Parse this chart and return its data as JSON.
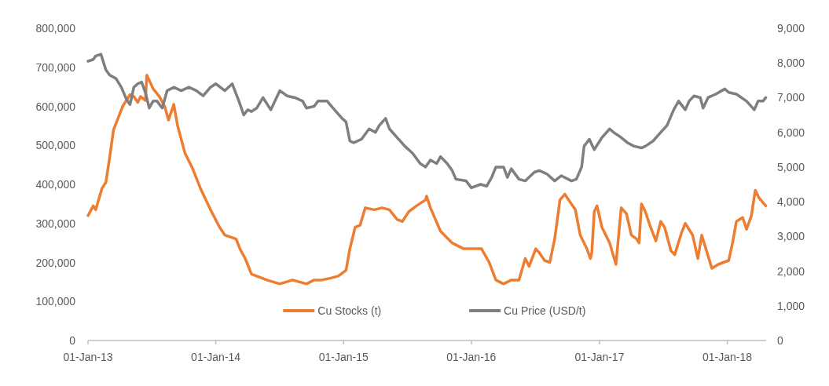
{
  "chart_data": {
    "type": "line",
    "xlim": [
      "2013-01-01",
      "2018-04-22"
    ],
    "xticks": [
      {
        "value": "2013-01-01",
        "label": "01-Jan-13"
      },
      {
        "value": "2014-01-01",
        "label": "01-Jan-14"
      },
      {
        "value": "2015-01-01",
        "label": "01-Jan-15"
      },
      {
        "value": "2016-01-01",
        "label": "01-Jan-16"
      },
      {
        "value": "2017-01-01",
        "label": "01-Jan-17"
      },
      {
        "value": "2018-01-01",
        "label": "01-Jan-18"
      }
    ],
    "ylim": [
      0,
      800000
    ],
    "yticks": [
      {
        "value": 0,
        "label": "0"
      },
      {
        "value": 100000,
        "label": "100,000"
      },
      {
        "value": 200000,
        "label": "200,000"
      },
      {
        "value": 300000,
        "label": "300,000"
      },
      {
        "value": 400000,
        "label": "400,000"
      },
      {
        "value": 500000,
        "label": "500,000"
      },
      {
        "value": 600000,
        "label": "600,000"
      },
      {
        "value": 700000,
        "label": "700,000"
      },
      {
        "value": 800000,
        "label": "800,000"
      }
    ],
    "y2lim": [
      0,
      9000
    ],
    "y2ticks": [
      {
        "value": 0,
        "label": "0"
      },
      {
        "value": 1000,
        "label": "1,000"
      },
      {
        "value": 2000,
        "label": "2,000"
      },
      {
        "value": 3000,
        "label": "3,000"
      },
      {
        "value": 4000,
        "label": "4,000"
      },
      {
        "value": 5000,
        "label": "5,000"
      },
      {
        "value": 6000,
        "label": "6,000"
      },
      {
        "value": 7000,
        "label": "7,000"
      },
      {
        "value": 8000,
        "label": "8,000"
      },
      {
        "value": 9000,
        "label": "9,000"
      }
    ],
    "grid": false,
    "legend": "bottom",
    "line_style": "solid",
    "marker": "none",
    "series": [
      {
        "name": "Cu Stocks (t)",
        "color": "#ed7d31",
        "x": [
          "2013-01-01",
          "2013-01-16",
          "2013-01-23",
          "2013-02-10",
          "2013-02-21",
          "2013-03-04",
          "2013-03-15",
          "2013-03-26",
          "2013-04-10",
          "2013-05-01",
          "2013-05-12",
          "2013-05-23",
          "2013-05-31",
          "2013-06-14",
          "2013-06-18",
          "2013-07-06",
          "2013-07-24",
          "2013-08-08",
          "2013-08-19",
          "2013-09-03",
          "2013-09-14",
          "2013-10-05",
          "2013-10-27",
          "2013-11-18",
          "2013-12-17",
          "2014-01-12",
          "2014-01-27",
          "2014-02-28",
          "2014-03-11",
          "2014-03-26",
          "2014-04-13",
          "2014-05-27",
          "2014-07-03",
          "2014-08-08",
          "2014-09-17",
          "2014-10-09",
          "2014-10-31",
          "2014-11-26",
          "2014-12-17",
          "2015-01-01",
          "2015-01-08",
          "2015-01-19",
          "2015-02-03",
          "2015-02-17",
          "2015-03-04",
          "2015-03-30",
          "2015-04-21",
          "2015-05-12",
          "2015-06-03",
          "2015-06-18",
          "2015-07-06",
          "2015-07-28",
          "2015-08-23",
          "2015-08-26",
          "2015-09-06",
          "2015-10-05",
          "2015-11-07",
          "2015-12-10",
          "2016-01-16",
          "2016-01-30",
          "2016-02-21",
          "2016-03-11",
          "2016-04-02",
          "2016-04-24",
          "2016-05-16",
          "2016-06-03",
          "2016-06-14",
          "2016-07-03",
          "2016-07-13",
          "2016-07-28",
          "2016-08-12",
          "2016-08-26",
          "2016-09-10",
          "2016-09-24",
          "2016-10-05",
          "2016-10-24",
          "2016-11-07",
          "2016-11-26",
          "2016-12-06",
          "2016-12-10",
          "2016-12-17",
          "2016-12-25",
          "2017-01-08",
          "2017-01-30",
          "2017-02-17",
          "2017-03-04",
          "2017-03-19",
          "2017-04-02",
          "2017-04-17",
          "2017-04-24",
          "2017-05-01",
          "2017-05-12",
          "2017-05-23",
          "2017-06-11",
          "2017-06-25",
          "2017-07-06",
          "2017-07-24",
          "2017-08-04",
          "2017-08-23",
          "2017-09-03",
          "2017-09-24",
          "2017-10-09",
          "2017-10-20",
          "2017-11-18",
          "2017-12-06",
          "2018-01-05",
          "2018-01-16",
          "2018-01-27",
          "2018-02-14",
          "2018-02-25",
          "2018-03-11",
          "2018-03-22",
          "2018-04-02",
          "2018-04-21"
        ],
        "values": [
          320000,
          345000,
          335000,
          390000,
          405000,
          470000,
          540000,
          565000,
          600000,
          630000,
          625000,
          610000,
          625000,
          615000,
          680000,
          645000,
          625000,
          600000,
          565000,
          605000,
          550000,
          480000,
          440000,
          390000,
          335000,
          290000,
          270000,
          260000,
          235000,
          210000,
          170000,
          155000,
          145000,
          155000,
          145000,
          155000,
          155000,
          160000,
          165000,
          175000,
          180000,
          235000,
          290000,
          295000,
          340000,
          335000,
          340000,
          335000,
          310000,
          305000,
          330000,
          345000,
          360000,
          370000,
          340000,
          280000,
          250000,
          235000,
          235000,
          235000,
          200000,
          155000,
          145000,
          155000,
          155000,
          210000,
          190000,
          235000,
          225000,
          205000,
          200000,
          260000,
          360000,
          375000,
          360000,
          335000,
          270000,
          235000,
          210000,
          225000,
          330000,
          345000,
          290000,
          250000,
          195000,
          340000,
          325000,
          270000,
          260000,
          250000,
          350000,
          330000,
          300000,
          255000,
          305000,
          290000,
          230000,
          220000,
          275000,
          300000,
          270000,
          210000,
          270000,
          185000,
          195000,
          205000,
          250000,
          305000,
          315000,
          285000,
          320000,
          385000,
          365000,
          345000
        ]
      },
      {
        "name": "Cu Price (USD/t)",
        "color": "#7f7f7f",
        "axis": "y2",
        "x": [
          "2013-01-01",
          "2013-01-16",
          "2013-01-23",
          "2013-02-07",
          "2013-02-10",
          "2013-02-21",
          "2013-03-04",
          "2013-03-22",
          "2013-04-06",
          "2013-04-21",
          "2013-05-01",
          "2013-05-12",
          "2013-05-23",
          "2013-06-03",
          "2013-06-14",
          "2013-06-25",
          "2013-07-06",
          "2013-07-17",
          "2013-08-01",
          "2013-08-15",
          "2013-09-03",
          "2013-09-24",
          "2013-10-16",
          "2013-11-07",
          "2013-11-26",
          "2013-12-17",
          "2014-01-01",
          "2014-01-27",
          "2014-02-17",
          "2014-03-08",
          "2014-03-22",
          "2014-04-02",
          "2014-04-13",
          "2014-04-28",
          "2014-05-16",
          "2014-06-07",
          "2014-07-03",
          "2014-07-24",
          "2014-08-15",
          "2014-09-06",
          "2014-09-17",
          "2014-10-09",
          "2014-10-20",
          "2014-11-15",
          "2014-12-06",
          "2014-12-28",
          "2015-01-08",
          "2015-01-19",
          "2015-01-30",
          "2015-02-21",
          "2015-03-15",
          "2015-04-02",
          "2015-04-13",
          "2015-05-01",
          "2015-05-12",
          "2015-06-03",
          "2015-06-25",
          "2015-07-17",
          "2015-08-08",
          "2015-08-23",
          "2015-09-06",
          "2015-09-24",
          "2015-10-05",
          "2015-10-24",
          "2015-11-07",
          "2015-11-18",
          "2015-12-17",
          "2016-01-01",
          "2016-01-27",
          "2016-02-14",
          "2016-02-28",
          "2016-03-11",
          "2016-04-02",
          "2016-04-13",
          "2016-04-24",
          "2016-05-16",
          "2016-06-03",
          "2016-06-29",
          "2016-07-13",
          "2016-08-04",
          "2016-08-26",
          "2016-09-14",
          "2016-10-13",
          "2016-10-27",
          "2016-11-11",
          "2016-11-18",
          "2016-12-03",
          "2016-12-17",
          "2017-01-08",
          "2017-01-30",
          "2017-02-10",
          "2017-03-04",
          "2017-03-22",
          "2017-04-10",
          "2017-05-01",
          "2017-05-12",
          "2017-06-03",
          "2017-06-25",
          "2017-07-13",
          "2017-08-01",
          "2017-08-15",
          "2017-09-03",
          "2017-09-14",
          "2017-09-28",
          "2017-10-16",
          "2017-10-24",
          "2017-11-07",
          "2017-11-29",
          "2017-12-25",
          "2018-01-05",
          "2018-01-27",
          "2018-02-25",
          "2018-03-19",
          "2018-03-30",
          "2018-04-13",
          "2018-04-21"
        ],
        "values": [
          8050,
          8100,
          8200,
          8250,
          8150,
          7800,
          7650,
          7550,
          7300,
          6950,
          6800,
          7300,
          7400,
          7450,
          7150,
          6700,
          6900,
          6900,
          6700,
          7200,
          7300,
          7200,
          7300,
          7200,
          7050,
          7300,
          7400,
          7200,
          7400,
          6900,
          6500,
          6650,
          6600,
          6700,
          7000,
          6650,
          7200,
          7050,
          7000,
          6900,
          6700,
          6750,
          6900,
          6900,
          6650,
          6400,
          6300,
          5750,
          5700,
          5800,
          6100,
          6000,
          6200,
          6400,
          6100,
          5850,
          5600,
          5400,
          5100,
          5000,
          5200,
          5100,
          5300,
          5100,
          4900,
          4650,
          4600,
          4400,
          4500,
          4450,
          4700,
          5000,
          5000,
          4700,
          4950,
          4650,
          4600,
          4850,
          4900,
          4800,
          4600,
          4750,
          4600,
          4650,
          5000,
          5600,
          5800,
          5500,
          5850,
          6100,
          6000,
          5850,
          5700,
          5600,
          5550,
          5600,
          5750,
          6000,
          6200,
          6650,
          6900,
          6650,
          6900,
          7050,
          7000,
          6700,
          7000,
          7100,
          7250,
          7150,
          7100,
          6900,
          6650,
          6900,
          6900,
          7000
        ]
      }
    ]
  }
}
